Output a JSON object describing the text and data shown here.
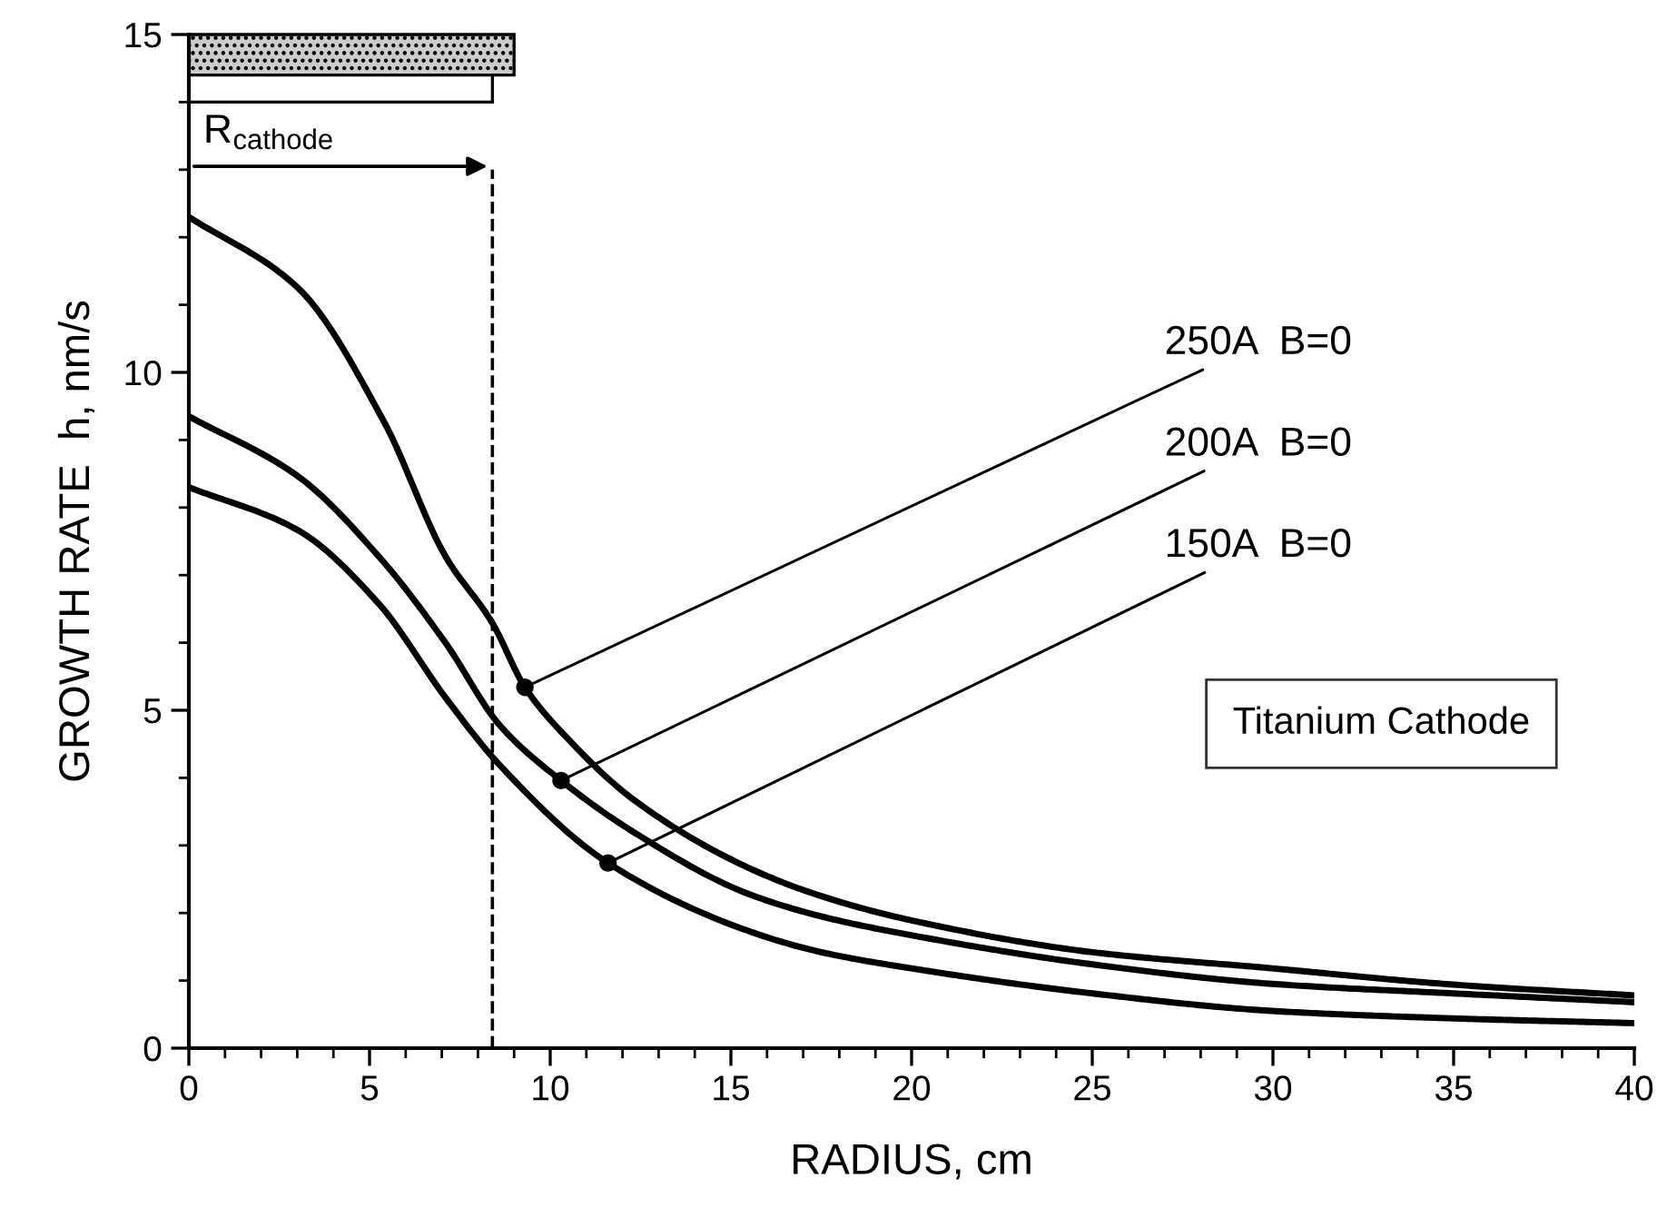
{
  "chart_data": {
    "type": "line",
    "xlabel": "RADIUS, cm",
    "ylabel": "GROWTH RATE  h, nm/s",
    "series": [
      {
        "color": "#000000",
        "x": [
          0,
          3.0,
          5.4,
          7.1,
          8.4,
          9.3,
          10.45,
          12.3,
          15.4,
          17.5,
          20,
          25,
          30,
          35,
          40
        ],
        "values": [
          12.3,
          11.26,
          9.27,
          7.28,
          6.29,
          5.34,
          4.6,
          3.68,
          2.69,
          2.25,
          1.89,
          1.42,
          1.18,
          0.94,
          0.78
        ]
      },
      {
        "color": "#000000",
        "x": [
          0,
          3.0,
          5.25,
          7.1,
          8.6,
          10.3,
          12.3,
          15.4,
          17.5,
          20,
          25,
          30,
          35,
          40
        ],
        "values": [
          9.35,
          8.47,
          7.28,
          6.0,
          4.78,
          3.96,
          3.2,
          2.3,
          1.95,
          1.67,
          1.24,
          0.95,
          0.81,
          0.68
        ]
      },
      {
        "color": "#000000",
        "x": [
          0,
          3.0,
          5.25,
          7.1,
          8.6,
          11.6,
          15.4,
          17.5,
          20,
          25,
          30,
          35,
          40
        ],
        "values": [
          8.3,
          7.67,
          6.58,
          5.19,
          4.19,
          2.74,
          1.75,
          1.42,
          1.18,
          0.81,
          0.55,
          0.44,
          0.37
        ]
      }
    ],
    "annotations": [
      {
        "text": "250A  B=0",
        "x": 9.3,
        "y": 5.34
      },
      {
        "text": "200A  B=0",
        "x": 10.3,
        "y": 3.96
      },
      {
        "text": "150A  B=0",
        "x": 11.6,
        "y": 2.74
      },
      "R$_{cathode}$",
      "Titanium Cathode"
    ],
    "ref_lines": [
      {
        "axis": "x",
        "value": 8.4,
        "color": "#000000",
        "line_style": "dashed"
      }
    ],
    "xlim": [
      0,
      40
    ],
    "xticks": [
      0,
      5,
      10,
      15,
      20,
      25,
      30,
      35,
      40
    ],
    "ylim": [
      0,
      15
    ],
    "yticks": [
      0,
      5,
      10,
      15
    ],
    "grid": false,
    "legend": false,
    "marker": "none",
    "line_style": "solid"
  }
}
